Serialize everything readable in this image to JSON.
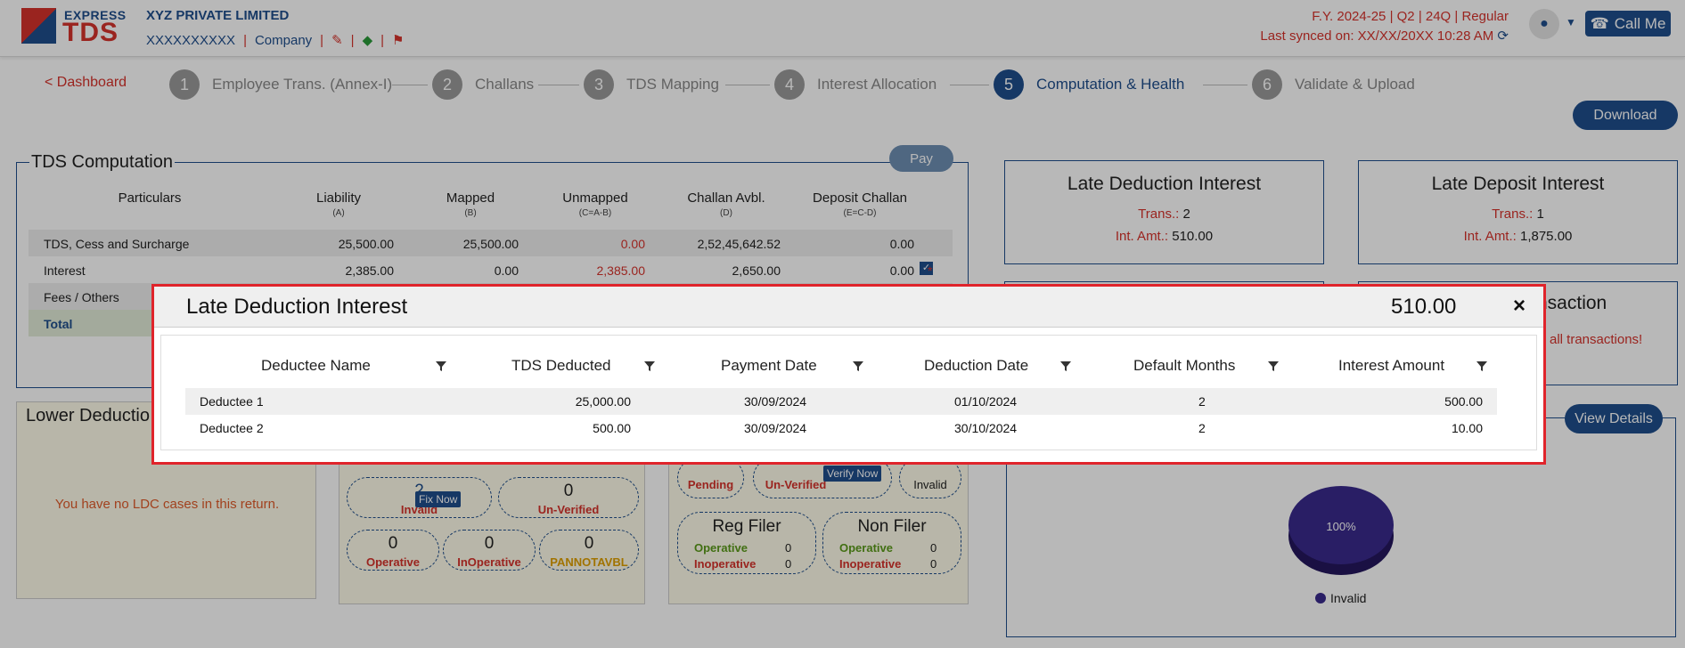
{
  "header": {
    "logo_top": "EXPRESS",
    "logo_main": "TDS",
    "company": "XYZ PRIVATE LIMITED",
    "tan": "XXXXXXXXXX",
    "company_link": "Company",
    "fy_line": "F.Y. 2024-25  | Q2  | 24Q | Regular",
    "sync_line": "Last synced on: XX/XX/20XX 10:28 AM",
    "call_me": "Call Me"
  },
  "steps": {
    "dashboard": "< Dashboard",
    "items": [
      {
        "num": "1",
        "label": "Employee Trans. (Annex-I)"
      },
      {
        "num": "2",
        "label": "Challans"
      },
      {
        "num": "3",
        "label": "TDS Mapping"
      },
      {
        "num": "4",
        "label": "Interest Allocation"
      },
      {
        "num": "5",
        "label": "Computation & Health"
      },
      {
        "num": "6",
        "label": "Validate & Upload"
      }
    ]
  },
  "download": "Download",
  "computation": {
    "title": "TDS Computation",
    "pay": "Pay",
    "headers": [
      {
        "label": "Particulars",
        "sub": ""
      },
      {
        "label": "Liability",
        "sub": "(A)"
      },
      {
        "label": "Mapped",
        "sub": "(B)"
      },
      {
        "label": "Unmapped",
        "sub": "(C=A-B)"
      },
      {
        "label": "Challan Avbl.",
        "sub": "(D)"
      },
      {
        "label": "Deposit Challan",
        "sub": "(E=C-D)"
      }
    ],
    "rows": [
      {
        "name": "TDS, Cess and Surcharge",
        "liability": "25,500.00",
        "mapped": "25,500.00",
        "unmapped": "0.00",
        "challan": "2,52,45,642.52",
        "deposit": "0.00"
      },
      {
        "name": "Interest",
        "liability": "2,385.00",
        "mapped": "0.00",
        "unmapped": "2,385.00",
        "challan": "2,650.00",
        "deposit": "0.00"
      },
      {
        "name": "Fees / Others"
      },
      {
        "name": "Total"
      }
    ],
    "asterisk": "*"
  },
  "late_deduction_card": {
    "title": "Late Deduction Interest",
    "trans_label": "Trans.:",
    "trans": "2",
    "amt_label": "Int. Amt.:",
    "amt": "510.00"
  },
  "late_deposit_card": {
    "title": "Late Deposit Interest",
    "trans_label": "Trans.:",
    "trans": "1",
    "amt_label": "Int. Amt.:",
    "amt": "1,875.00"
  },
  "partial_card": {
    "title_tail": "nsaction",
    "msg_tail": "all transactions!"
  },
  "lower_deduction": {
    "title": "Lower Deductio",
    "message": "You have no LDC cases in this return."
  },
  "pan_panel": {
    "invalid_val": "2",
    "invalid_label": "Invalid",
    "fix_now": "Fix Now",
    "unverified_val": "0",
    "unverified_label": "Un-Verified",
    "operative_val": "0",
    "operative_label": "Operative",
    "inoperative_val": "0",
    "inoperative_label": "InOperative",
    "pannotavbl_val": "0",
    "pannotavbl_label": "PANNOTAVBL"
  },
  "filer_panel": {
    "pending_label": "Pending",
    "unverified_label": "Un-Verified",
    "verify_now": "Verify Now",
    "invalid_label": "Invalid",
    "reg_filer": "Reg Filer",
    "non_filer": "Non Filer",
    "operative": "Operative",
    "inoperative": "Inoperative",
    "reg_op": "0",
    "reg_inop": "0",
    "non_op": "0",
    "non_inop": "0"
  },
  "health_chart": {
    "view_details": "View Details",
    "pie_label": "100%",
    "legend": "Invalid",
    "color": "#3a2a8c"
  },
  "chart_data": {
    "type": "pie",
    "categories": [
      "Invalid"
    ],
    "values": [
      100
    ]
  },
  "modal": {
    "title": "Late Deduction Interest",
    "amount": "510.00",
    "close": "×",
    "columns": [
      "Deductee Name",
      "TDS Deducted",
      "Payment Date",
      "Deduction Date",
      "Default Months",
      "Interest Amount"
    ],
    "rows": [
      {
        "name": "Deductee 1",
        "tds": "25,000.00",
        "payment": "30/09/2024",
        "deduction": "01/10/2024",
        "months": "2",
        "interest": "500.00"
      },
      {
        "name": "Deductee 2",
        "tds": "500.00",
        "payment": "30/09/2024",
        "deduction": "30/10/2024",
        "months": "2",
        "interest": "10.00"
      }
    ]
  }
}
